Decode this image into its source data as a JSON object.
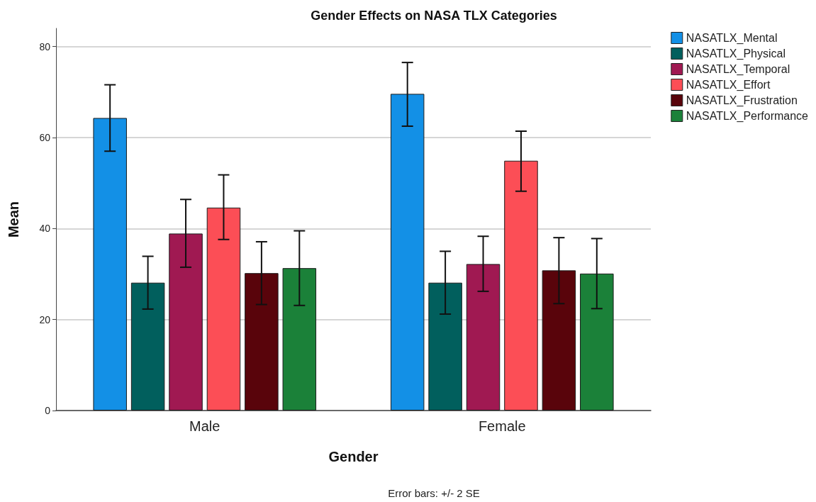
{
  "chart_data": {
    "type": "bar",
    "title": "Gender Effects on NASA TLX Categories",
    "xlabel": "Gender",
    "ylabel": "Mean",
    "categories": [
      "Male",
      "Female"
    ],
    "series": [
      {
        "name": "NASATLX_Mental",
        "color": "#1390e6",
        "values": [
          64.3,
          69.6
        ],
        "errors": [
          [
            57.0,
            71.6
          ],
          [
            62.5,
            76.5
          ]
        ]
      },
      {
        "name": "NASATLX_Physical",
        "color": "#015f5d",
        "values": [
          28.1,
          28.1
        ],
        "errors": [
          [
            22.3,
            33.9
          ],
          [
            21.2,
            35.0
          ]
        ]
      },
      {
        "name": "NASATLX_Temporal",
        "color": "#a01952",
        "values": [
          38.9,
          32.2
        ],
        "errors": [
          [
            31.5,
            46.4
          ],
          [
            26.2,
            38.3
          ]
        ]
      },
      {
        "name": "NASATLX_Effort",
        "color": "#fc4e56",
        "values": [
          44.6,
          54.9
        ],
        "errors": [
          [
            37.6,
            51.8
          ],
          [
            48.2,
            61.4
          ]
        ]
      },
      {
        "name": "NASATLX_Frustration",
        "color": "#59040b",
        "values": [
          30.2,
          30.8
        ],
        "errors": [
          [
            23.3,
            37.1
          ],
          [
            23.5,
            38.0
          ]
        ]
      },
      {
        "name": "NASATLX_Performance",
        "color": "#1b8139",
        "values": [
          31.3,
          30.1
        ],
        "errors": [
          [
            23.1,
            39.5
          ],
          [
            22.4,
            37.8
          ]
        ]
      }
    ],
    "ylim": [
      0,
      84
    ],
    "yticks": [
      0,
      20,
      40,
      60,
      80
    ],
    "grid": "y",
    "legend": "top right",
    "annotations": [
      "Error bars: +/- 2 SE"
    ]
  }
}
